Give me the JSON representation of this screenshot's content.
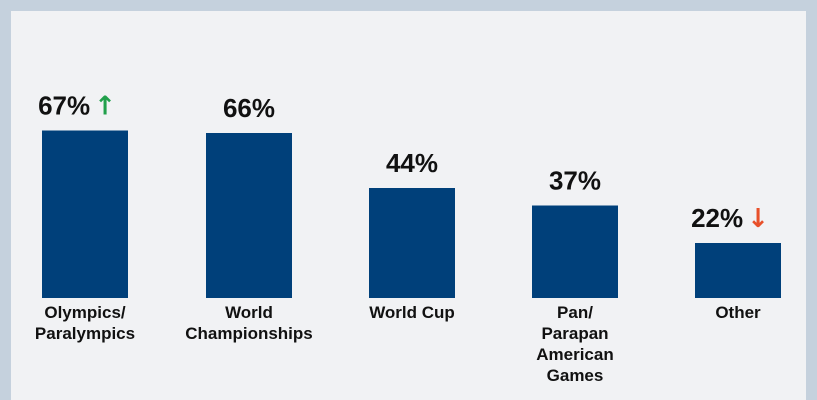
{
  "chart_data": {
    "type": "bar",
    "categories": [
      [
        "Olympics/",
        "Paralympics"
      ],
      [
        "World",
        "Championships"
      ],
      [
        "World Cup"
      ],
      [
        "Pan/",
        "Parapan",
        "American",
        "Games"
      ],
      [
        "Other"
      ]
    ],
    "values": [
      67,
      66,
      44,
      37,
      22
    ],
    "value_labels": [
      "67%",
      "66%",
      "44%",
      "37%",
      "22%"
    ],
    "trend_indicators": [
      "up",
      "",
      "",
      "",
      "down"
    ],
    "trend_colors": {
      "up": "#21a04b",
      "down": "#e8502a"
    },
    "bar_color": "#00407a",
    "ylim": [
      0,
      100
    ],
    "title": "",
    "xlabel": "",
    "ylabel": "",
    "grid": false,
    "legend": "none"
  }
}
